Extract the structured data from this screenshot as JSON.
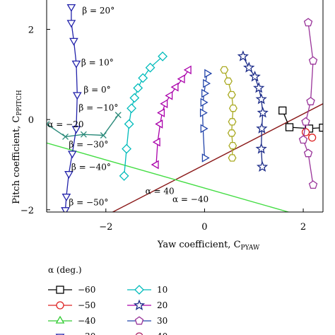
{
  "chart_data": {
    "type": "line",
    "xlabel": "Yaw coefficient, C",
    "xlabel_sub": "PYAW",
    "ylabel": "Pitch coefficient, C",
    "ylabel_sub": "PPITCH",
    "xlim": [
      -3.2,
      2.4
    ],
    "ylim": [
      -2.05,
      2.65
    ],
    "x_ticks": [
      {
        "value": -2,
        "label": "−2"
      },
      {
        "value": 0,
        "label": "0"
      },
      {
        "value": 2,
        "label": "2"
      }
    ],
    "y_ticks": [
      {
        "value": -2,
        "label": "−2"
      },
      {
        "value": 0,
        "label": "0"
      },
      {
        "value": 2,
        "label": "2"
      }
    ],
    "grid": false,
    "legend": {
      "title": "α (deg.)",
      "placement": "bottom-left",
      "entries": [
        "−60",
        "−50",
        "−40",
        "−30",
        "10",
        "20",
        "30",
        "40"
      ]
    },
    "series": [
      {
        "name": "−60",
        "color": "#000000",
        "marker": "square",
        "x": [
          1.58,
          1.72,
          2.12,
          2.4
        ],
        "y": [
          0.2,
          -0.17,
          -0.2,
          -0.18
        ]
      },
      {
        "name": "−50",
        "color": "#dd2222",
        "marker": "circle",
        "x": [
          2.05,
          2.18
        ],
        "y": [
          -0.28,
          -0.4
        ]
      },
      {
        "name": "−40",
        "color": "#33cc33",
        "marker": "triangle-up",
        "x": [],
        "y": []
      },
      {
        "name": "−30",
        "color": "#2222aa",
        "marker": "triangle-down",
        "x": [
          -2.7,
          -2.7,
          -2.65,
          -2.6,
          -2.58,
          -2.6,
          -2.68,
          -2.75,
          -2.8,
          -2.82
        ],
        "y": [
          2.5,
          2.15,
          1.75,
          1.25,
          0.55,
          -0.2,
          -0.75,
          -1.2,
          -1.7,
          -2.0
        ]
      },
      {
        "name": "10",
        "color": "#00bbbb",
        "marker": "diamond",
        "x": [
          -0.85,
          -1.1,
          -1.25,
          -1.35,
          -1.42,
          -1.48,
          -1.53,
          -1.58,
          -1.63
        ],
        "y": [
          1.4,
          1.15,
          0.92,
          0.7,
          0.48,
          0.25,
          -0.1,
          -0.65,
          -1.25
        ]
      },
      {
        "name": "20",
        "color": "#aa00aa",
        "marker": "triangle-left",
        "x": [
          -0.32,
          -0.45,
          -0.58,
          -0.7,
          -0.8,
          -0.86,
          -0.9,
          -0.95,
          -0.98
        ],
        "y": [
          1.1,
          0.9,
          0.72,
          0.53,
          0.35,
          0.15,
          -0.1,
          -0.5,
          -1.0
        ]
      },
      {
        "name": "30",
        "color": "#2244aa",
        "marker": "triangle-right",
        "x": [
          0.05,
          0.02,
          -0.01,
          -0.03,
          -0.04,
          -0.03,
          0.0
        ],
        "y": [
          1.02,
          0.8,
          0.58,
          0.38,
          0.15,
          -0.2,
          -0.85
        ]
      },
      {
        "name": "40",
        "color": "#aaaa22",
        "marker": "hexagon",
        "x": [
          0.4,
          0.48,
          0.55,
          0.58,
          0.56,
          0.55,
          0.57,
          0.56
        ],
        "y": [
          1.1,
          0.85,
          0.55,
          0.25,
          -0.05,
          -0.3,
          -0.58,
          -0.85
        ]
      },
      {
        "name": "20 (star)",
        "color": "#1a2a88",
        "marker": "star",
        "x": [
          0.78,
          0.9,
          1.02,
          1.1,
          1.15,
          1.18,
          1.16,
          1.15,
          1.17
        ],
        "y": [
          1.4,
          1.15,
          0.95,
          0.7,
          0.45,
          0.15,
          -0.2,
          -0.65,
          -1.05
        ]
      },
      {
        "name": "30 (pentagon)",
        "color": "#993399",
        "marker": "pentagon",
        "x": [
          2.1,
          2.2,
          2.15,
          2.05,
          2.0,
          2.1,
          2.2
        ],
        "y": [
          2.15,
          1.3,
          0.4,
          -0.05,
          -0.45,
          -0.75,
          -1.45
        ]
      }
    ],
    "lines": [
      {
        "label": "α = 40",
        "color": "#8b1a1a",
        "x": [
          -1.95,
          2.4
        ],
        "y": [
          -2.1,
          0.35
        ]
      },
      {
        "label": "α = −40",
        "color": "#44dd44",
        "x": [
          -3.2,
          1.7
        ],
        "y": [
          -0.52,
          -2.05
        ]
      },
      {
        "label": "α = −20",
        "color": "#2a8a7a",
        "x": [
          -3.2,
          -2.82,
          -2.45,
          -2.05,
          -1.75
        ],
        "y": [
          -0.1,
          -0.38,
          -0.33,
          -0.35,
          0.1
        ]
      }
    ],
    "annotations": [
      {
        "text": "β = 20°"
      },
      {
        "text": "β = 10°"
      },
      {
        "text": "β = 0°"
      },
      {
        "text": "β = −10°"
      },
      {
        "text": "α = −20"
      },
      {
        "text": "β = −30°"
      },
      {
        "text": "β = −40°"
      },
      {
        "text": "β = −50°"
      },
      {
        "text": "α = 40"
      },
      {
        "text": "α = −40"
      }
    ]
  }
}
